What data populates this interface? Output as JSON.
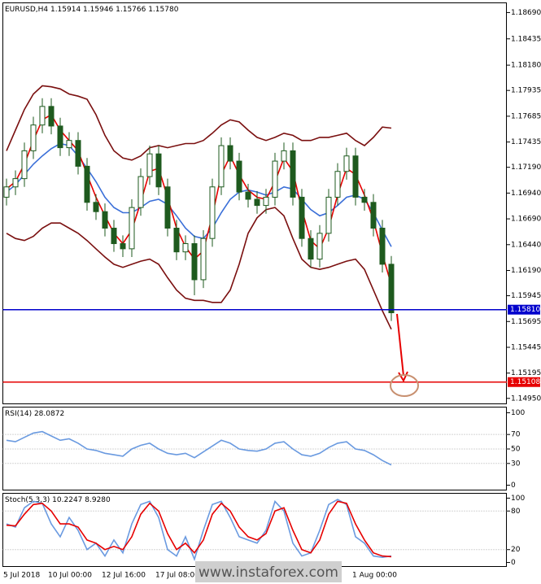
{
  "chart_data": [
    {
      "type": "candlestick",
      "title": "EURUSD,H4 1.15914 1.15946 1.15766 1.15780",
      "categories": [
        "5 Jul 2018",
        null,
        null,
        null,
        null,
        "10 Jul 00:00",
        null,
        null,
        null,
        null,
        null,
        "12 Jul 16:00",
        null,
        null,
        null,
        null,
        null,
        "17 Jul 08:00",
        null,
        null,
        null,
        null,
        null,
        null,
        null,
        null,
        null,
        null,
        null,
        null,
        null,
        null,
        null,
        null,
        null,
        null,
        null,
        null,
        null,
        "1 Aug 00:00",
        null,
        null,
        null,
        null
      ],
      "open": [
        1.169,
        1.17,
        1.1708,
        1.1735,
        1.176,
        1.1778,
        1.1759,
        1.1738,
        1.1745,
        1.172,
        1.1685,
        1.1676,
        1.166,
        1.1645,
        1.164,
        1.168,
        1.171,
        1.1732,
        1.17,
        1.166,
        1.1637,
        1.1645,
        1.161,
        1.165,
        1.17,
        1.174,
        1.1725,
        1.1695,
        1.1688,
        1.1682,
        1.169,
        1.1725,
        1.1735,
        1.169,
        1.165,
        1.163,
        1.1655,
        1.169,
        1.1715,
        1.173,
        1.169,
        1.1685,
        1.166,
        1.1625
      ],
      "high": [
        1.1708,
        1.1716,
        1.1743,
        1.1768,
        1.1786,
        1.1786,
        1.1767,
        1.1753,
        1.1753,
        1.1728,
        1.1693,
        1.1684,
        1.1668,
        1.1653,
        1.1688,
        1.1718,
        1.174,
        1.174,
        1.1708,
        1.1668,
        1.1653,
        1.1653,
        1.1658,
        1.1708,
        1.1748,
        1.1748,
        1.1733,
        1.1703,
        1.1696,
        1.1698,
        1.1733,
        1.1743,
        1.1743,
        1.1698,
        1.1658,
        1.1663,
        1.1698,
        1.1723,
        1.1738,
        1.1738,
        1.1698,
        1.1693,
        1.1668,
        1.1633
      ],
      "low": [
        1.1682,
        1.1692,
        1.17,
        1.1727,
        1.1752,
        1.1751,
        1.173,
        1.173,
        1.1712,
        1.1677,
        1.1668,
        1.1652,
        1.1637,
        1.1632,
        1.1632,
        1.1672,
        1.1702,
        1.1692,
        1.1652,
        1.1629,
        1.1629,
        1.1595,
        1.1602,
        1.1642,
        1.1692,
        1.1717,
        1.1687,
        1.168,
        1.1674,
        1.1674,
        1.1682,
        1.1717,
        1.1682,
        1.1642,
        1.1622,
        1.1622,
        1.1647,
        1.1682,
        1.1707,
        1.1682,
        1.1677,
        1.1652,
        1.1617,
        1.157
      ],
      "close": [
        1.17,
        1.1708,
        1.1735,
        1.176,
        1.1778,
        1.1759,
        1.1738,
        1.1745,
        1.172,
        1.1685,
        1.1676,
        1.166,
        1.1645,
        1.164,
        1.168,
        1.171,
        1.1732,
        1.17,
        1.166,
        1.1637,
        1.1645,
        1.161,
        1.165,
        1.17,
        1.174,
        1.1725,
        1.1695,
        1.1688,
        1.1682,
        1.169,
        1.1725,
        1.1735,
        1.169,
        1.165,
        1.163,
        1.1655,
        1.169,
        1.1715,
        1.173,
        1.169,
        1.1685,
        1.166,
        1.1625,
        1.1578
      ],
      "candle_colors": {
        "up": "#ffffff",
        "down": "#1e5a1e",
        "wick": "#1e5a1e"
      },
      "series": [
        {
          "color": "#7a0f0f",
          "values": [
            1.1735,
            1.1755,
            1.1775,
            1.179,
            1.1798,
            1.1797,
            1.1795,
            1.179,
            1.1788,
            1.1785,
            1.177,
            1.175,
            1.1735,
            1.1728,
            1.1726,
            1.173,
            1.1738,
            1.174,
            1.1738,
            1.174,
            1.1742,
            1.1742,
            1.1745,
            1.1752,
            1.176,
            1.1765,
            1.1763,
            1.1755,
            1.1748,
            1.1745,
            1.1748,
            1.1752,
            1.175,
            1.1745,
            1.1745,
            1.1748,
            1.1748,
            1.175,
            1.1752,
            1.1745,
            1.174,
            1.1748,
            1.1758,
            1.1757
          ]
        },
        {
          "color": "#7a0f0f",
          "values": [
            1.1655,
            1.165,
            1.1648,
            1.1652,
            1.166,
            1.1665,
            1.1665,
            1.166,
            1.1655,
            1.1648,
            1.164,
            1.1632,
            1.1625,
            1.1622,
            1.1625,
            1.1628,
            1.163,
            1.1625,
            1.1612,
            1.16,
            1.1592,
            1.159,
            1.159,
            1.1588,
            1.1588,
            1.16,
            1.1625,
            1.1655,
            1.167,
            1.1678,
            1.168,
            1.1672,
            1.165,
            1.163,
            1.1622,
            1.162,
            1.1622,
            1.1625,
            1.1628,
            1.163,
            1.162,
            1.16,
            1.158,
            1.1562
          ]
        },
        {
          "color": "#3a6fd8",
          "values": [
            1.1695,
            1.1702,
            1.1712,
            1.1722,
            1.173,
            1.1737,
            1.1742,
            1.174,
            1.173,
            1.1718,
            1.1705,
            1.169,
            1.168,
            1.1675,
            1.1675,
            1.168,
            1.1686,
            1.1688,
            1.1683,
            1.1672,
            1.166,
            1.1652,
            1.165,
            1.166,
            1.1675,
            1.1688,
            1.1695,
            1.1697,
            1.1695,
            1.1692,
            1.1695,
            1.17,
            1.1698,
            1.1688,
            1.1678,
            1.1672,
            1.1675,
            1.1682,
            1.169,
            1.1692,
            1.1688,
            1.1675,
            1.1658,
            1.1642
          ]
        },
        {
          "color": "#e60000",
          "values": [
            1.1698,
            1.1705,
            1.1722,
            1.1745,
            1.1765,
            1.177,
            1.1755,
            1.1745,
            1.1735,
            1.1712,
            1.169,
            1.1672,
            1.1655,
            1.1645,
            1.1658,
            1.1685,
            1.1715,
            1.1718,
            1.169,
            1.166,
            1.1642,
            1.163,
            1.1638,
            1.1672,
            1.1712,
            1.173,
            1.1712,
            1.1697,
            1.169,
            1.1688,
            1.1705,
            1.1728,
            1.1715,
            1.1678,
            1.1648,
            1.164,
            1.166,
            1.1692,
            1.1718,
            1.1712,
            1.1692,
            1.1668,
            1.1635,
            1.1605
          ]
        }
      ],
      "levels": [
        {
          "value": 1.1581,
          "label": "1.15810",
          "color": "#0000cc"
        },
        {
          "value": 1.15108,
          "label": "1.15108",
          "color": "#e60000"
        }
      ],
      "ylim": [
        1.14897,
        1.18784
      ],
      "yticks": [
        {
          "value": 1.1869,
          "label": "1.18690"
        },
        1.18435,
        {
          "value": 1.1818,
          "label": "1.18180"
        },
        1.17935,
        1.17685,
        1.17435,
        {
          "value": 1.1719,
          "label": "1.17190"
        },
        {
          "value": 1.1694,
          "label": "1.16940"
        },
        {
          "value": 1.1669,
          "label": "1.16690"
        },
        {
          "value": 1.1644,
          "label": "1.16440"
        },
        {
          "value": 1.1619,
          "label": "1.16190"
        },
        1.15945,
        1.15695,
        1.15445,
        1.15195,
        {
          "value": 1.1495,
          "label": "1.14950"
        }
      ]
    },
    {
      "type": "line",
      "title": "RSI(14) 28.0872",
      "series": [
        {
          "color": "#6a9ae0",
          "values": [
            62,
            60,
            66,
            72,
            74,
            68,
            62,
            64,
            58,
            50,
            48,
            44,
            42,
            40,
            50,
            55,
            58,
            50,
            44,
            42,
            44,
            38,
            46,
            54,
            62,
            58,
            50,
            48,
            47,
            50,
            58,
            60,
            50,
            42,
            40,
            44,
            52,
            58,
            60,
            50,
            48,
            42,
            34,
            28
          ]
        }
      ],
      "ylim": [
        -6.7,
        107.8
      ],
      "yticks": [
        100,
        70,
        50,
        30,
        0
      ],
      "grid_ticks": [
        70,
        50,
        30
      ]
    },
    {
      "type": "line",
      "title": "Stoch(5,3,3) 10.2247 8.9280",
      "series": [
        {
          "color": "#6a9ae0",
          "values": [
            60,
            55,
            85,
            95,
            92,
            60,
            40,
            70,
            50,
            20,
            30,
            10,
            35,
            15,
            60,
            90,
            95,
            70,
            20,
            10,
            40,
            5,
            50,
            90,
            95,
            70,
            40,
            35,
            30,
            50,
            95,
            80,
            30,
            10,
            15,
            50,
            90,
            98,
            90,
            40,
            30,
            10,
            8,
            10
          ]
        },
        {
          "color": "#e60000",
          "values": [
            58,
            57,
            75,
            90,
            92,
            80,
            60,
            60,
            55,
            35,
            30,
            20,
            25,
            20,
            40,
            75,
            92,
            80,
            45,
            20,
            30,
            15,
            35,
            75,
            92,
            80,
            55,
            40,
            35,
            45,
            80,
            85,
            50,
            20,
            15,
            35,
            75,
            95,
            92,
            60,
            35,
            15,
            10,
            9
          ]
        }
      ],
      "ylim": [
        -6.25,
        107.5
      ],
      "yticks": [
        100,
        80,
        20,
        0
      ],
      "grid_ticks": [
        80,
        20
      ]
    }
  ],
  "watermark": "www.instaforex.com"
}
